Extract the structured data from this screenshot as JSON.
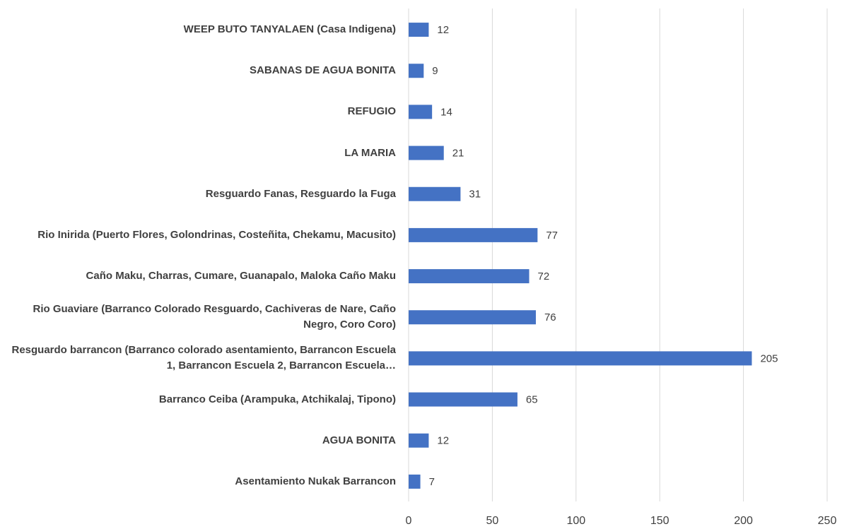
{
  "chart_data": {
    "type": "barh",
    "categories": [
      "WEEP BUTO TANYALAEN (Casa Indigena)",
      "SABANAS DE AGUA BONITA",
      "REFUGIO",
      "LA MARIA",
      "Resguardo Fanas, Resguardo la Fuga",
      "Rio Inirida (Puerto Flores, Golondrinas, Costeñita, Chekamu, Macusito)",
      "Caño Maku, Charras, Cumare, Guanapalo, Maloka Caño Maku",
      "Rio Guaviare (Barranco Colorado Resguardo, Cachiveras de Nare, Caño Negro, Coro Coro)",
      "Resguardo barrancon (Barranco colorado asentamiento, Barrancon Escuela 1, Barrancon Escuela 2, Barrancon Escuela…",
      "Barranco Ceiba (Arampuka, Atchikalaj, Tipono)",
      "AGUA BONITA",
      "Asentamiento Nukak Barrancon"
    ],
    "values": [
      12,
      9,
      14,
      21,
      31,
      77,
      72,
      76,
      205,
      65,
      12,
      7
    ],
    "color": "#4472c4",
    "xlim": [
      0,
      250
    ],
    "xticks": [
      0,
      50,
      100,
      150,
      200,
      250
    ],
    "grid": true
  }
}
